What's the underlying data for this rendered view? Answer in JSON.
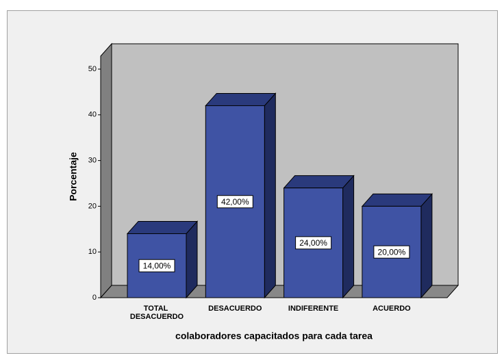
{
  "chart_data": {
    "type": "bar3d",
    "x_label": "colaboradores capacitados para cada tarea",
    "y_label": "Porcentaje",
    "categories": [
      "TOTAL DESACUERDO",
      "DESACUERDO",
      "INDIFERENTE",
      "ACUERDO"
    ],
    "values": [
      14,
      42,
      24,
      20
    ],
    "value_labels": [
      "14,00%",
      "42,00%",
      "24,00%",
      "20,00%"
    ],
    "color": "#3f53a4",
    "ylim": [
      0,
      50
    ],
    "yticks": [
      0,
      10,
      20,
      30,
      40,
      50
    ]
  }
}
